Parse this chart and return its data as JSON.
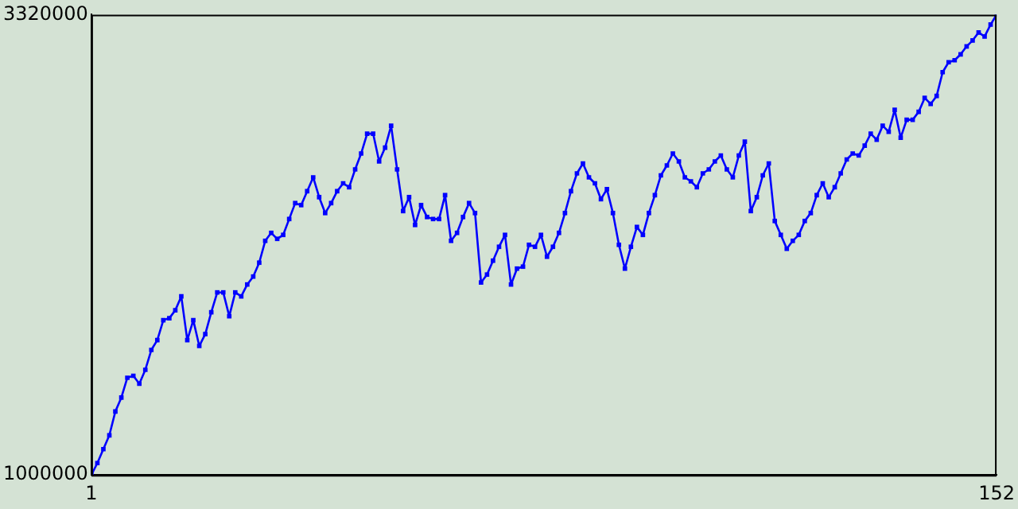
{
  "chart_data": {
    "type": "line",
    "marker": "square",
    "line_style": "solid",
    "grid": false,
    "legend": false,
    "xlim": [
      1,
      152
    ],
    "xticks": [
      1,
      152
    ],
    "ylim": [
      1000000,
      3320000
    ],
    "yticks": [
      1000000,
      3320000
    ],
    "x": [
      1,
      2,
      3,
      4,
      5,
      6,
      7,
      8,
      9,
      10,
      11,
      12,
      13,
      14,
      15,
      16,
      17,
      18,
      19,
      20,
      21,
      22,
      23,
      24,
      25,
      26,
      27,
      28,
      29,
      30,
      31,
      32,
      33,
      34,
      35,
      36,
      37,
      38,
      39,
      40,
      41,
      42,
      43,
      44,
      45,
      46,
      47,
      48,
      49,
      50,
      51,
      52,
      53,
      54,
      55,
      56,
      57,
      58,
      59,
      60,
      61,
      62,
      63,
      64,
      65,
      66,
      67,
      68,
      69,
      70,
      71,
      72,
      73,
      74,
      75,
      76,
      77,
      78,
      79,
      80,
      81,
      82,
      83,
      84,
      85,
      86,
      87,
      88,
      89,
      90,
      91,
      92,
      93,
      94,
      95,
      96,
      97,
      98,
      99,
      100,
      101,
      102,
      103,
      104,
      105,
      106,
      107,
      108,
      109,
      110,
      111,
      112,
      113,
      114,
      115,
      116,
      117,
      118,
      119,
      120,
      121,
      122,
      123,
      124,
      125,
      126,
      127,
      128,
      129,
      130,
      131,
      132,
      133,
      134,
      135,
      136,
      137,
      138,
      139,
      140,
      141,
      142,
      143,
      144,
      145,
      146,
      147,
      148,
      149,
      150,
      151,
      152
    ],
    "series": [
      {
        "color": "#0000ff",
        "values": [
          1000000,
          1060000,
          1130000,
          1200000,
          1320000,
          1390000,
          1490000,
          1500000,
          1460000,
          1530000,
          1630000,
          1680000,
          1780000,
          1790000,
          1830000,
          1900000,
          1680000,
          1780000,
          1650000,
          1710000,
          1820000,
          1920000,
          1920000,
          1800000,
          1920000,
          1900000,
          1960000,
          2000000,
          2070000,
          2180000,
          2220000,
          2190000,
          2210000,
          2290000,
          2370000,
          2360000,
          2430000,
          2500000,
          2400000,
          2320000,
          2370000,
          2430000,
          2470000,
          2450000,
          2540000,
          2620000,
          2720000,
          2720000,
          2580000,
          2650000,
          2760000,
          2540000,
          2330000,
          2400000,
          2260000,
          2360000,
          2300000,
          2290000,
          2290000,
          2410000,
          2180000,
          2220000,
          2300000,
          2370000,
          2320000,
          1970000,
          2010000,
          2080000,
          2150000,
          2210000,
          1960000,
          2040000,
          2050000,
          2160000,
          2150000,
          2210000,
          2100000,
          2150000,
          2220000,
          2320000,
          2430000,
          2520000,
          2570000,
          2500000,
          2470000,
          2390000,
          2440000,
          2320000,
          2160000,
          2040000,
          2150000,
          2250000,
          2210000,
          2320000,
          2410000,
          2510000,
          2560000,
          2620000,
          2580000,
          2500000,
          2480000,
          2450000,
          2520000,
          2540000,
          2580000,
          2610000,
          2540000,
          2500000,
          2610000,
          2680000,
          2330000,
          2400000,
          2510000,
          2570000,
          2280000,
          2210000,
          2140000,
          2180000,
          2210000,
          2280000,
          2320000,
          2410000,
          2470000,
          2400000,
          2450000,
          2520000,
          2590000,
          2620000,
          2610000,
          2660000,
          2720000,
          2690000,
          2760000,
          2730000,
          2840000,
          2700000,
          2790000,
          2790000,
          2830000,
          2900000,
          2870000,
          2910000,
          3030000,
          3080000,
          3090000,
          3120000,
          3160000,
          3190000,
          3230000,
          3210000,
          3270000,
          3320000
        ]
      }
    ]
  }
}
